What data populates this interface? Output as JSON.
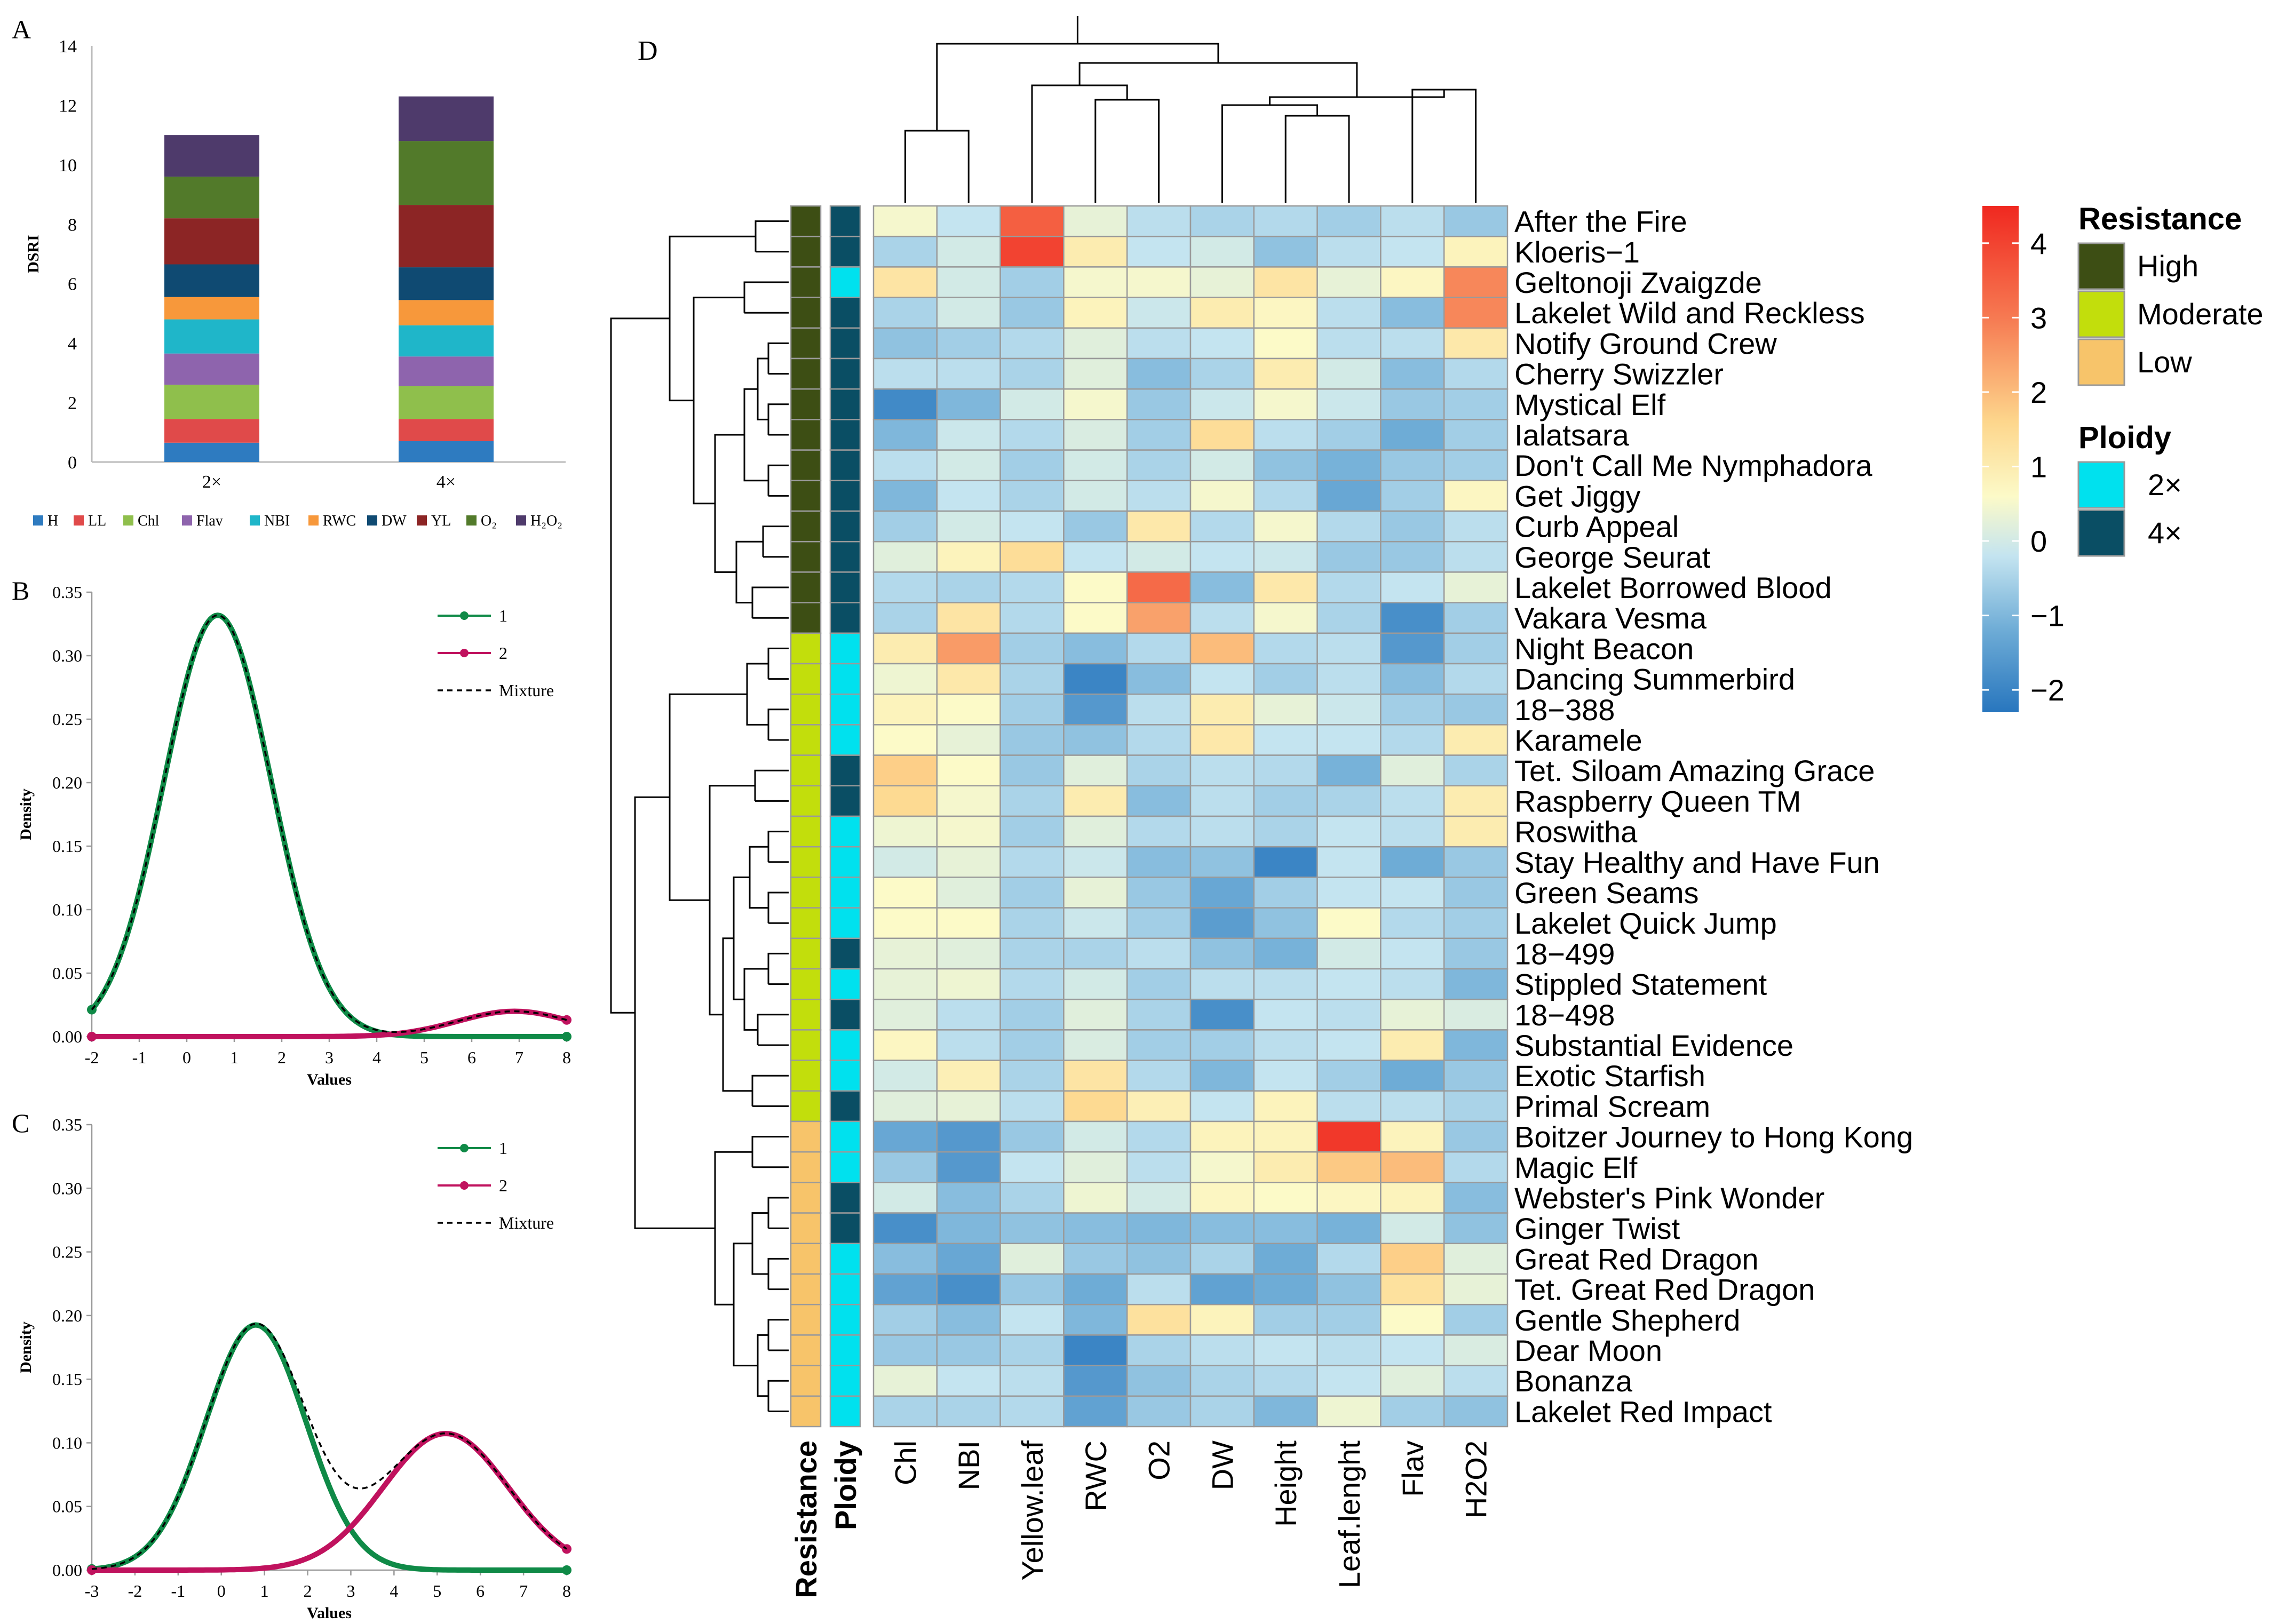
{
  "panels": {
    "A": "A",
    "B": "B",
    "C": "C",
    "D": "D"
  },
  "chart_data": [
    {
      "panel": "A",
      "type": "bar",
      "stacked": true,
      "ylabel": "DSRI",
      "ylim": [
        0,
        14
      ],
      "yticks": [
        0,
        2,
        4,
        6,
        8,
        10,
        12,
        14
      ],
      "categories": [
        "2×",
        "4×"
      ],
      "series": [
        {
          "name": "H",
          "color": "#2e7bc0",
          "values": [
            0.65,
            0.7
          ]
        },
        {
          "name": "LL",
          "color": "#e04a4a",
          "values": [
            0.8,
            0.75
          ]
        },
        {
          "name": "Chl",
          "color": "#8fbf4c",
          "values": [
            1.15,
            1.1
          ]
        },
        {
          "name": "Flav",
          "color": "#8e64ad",
          "values": [
            1.05,
            1.0
          ]
        },
        {
          "name": "NBI",
          "color": "#1fb6c9",
          "values": [
            1.15,
            1.05
          ]
        },
        {
          "name": "RWC",
          "color": "#f7983b",
          "values": [
            0.75,
            0.85
          ]
        },
        {
          "name": "DW",
          "color": "#0f4a72",
          "values": [
            1.1,
            1.1
          ]
        },
        {
          "name": "YL",
          "color": "#8c2525",
          "values": [
            1.55,
            2.1
          ]
        },
        {
          "name": "O₂",
          "color": "#527a2a",
          "values": [
            1.4,
            2.15
          ]
        },
        {
          "name": "H₂O₂",
          "color": "#4e3a6b",
          "values": [
            1.4,
            1.5
          ]
        }
      ]
    },
    {
      "panel": "B",
      "type": "line",
      "xlabel": "Values",
      "ylabel": "Density",
      "xlim": [
        -2,
        8
      ],
      "ylim": [
        0,
        0.35
      ],
      "xticks": [
        -2,
        -1,
        0,
        1,
        2,
        3,
        4,
        5,
        6,
        7,
        8
      ],
      "yticks": [
        "0.00",
        "0.05",
        "0.10",
        "0.15",
        "0.20",
        "0.25",
        "0.30",
        "0.35"
      ],
      "series": [
        {
          "name": "1",
          "color": "#0f8a47",
          "weight": 0.94,
          "mean": 0.65,
          "sd": 1.13
        },
        {
          "name": "2",
          "color": "#c0125e",
          "weight": 0.06,
          "mean": 6.9,
          "sd": 1.2
        },
        {
          "name": "Mixture",
          "color": "#000000",
          "dashed": true
        }
      ]
    },
    {
      "panel": "C",
      "type": "line",
      "xlabel": "Values",
      "ylabel": "Density",
      "xlim": [
        -3,
        8
      ],
      "ylim": [
        0,
        0.35
      ],
      "xticks": [
        -3,
        -2,
        -1,
        0,
        1,
        2,
        3,
        4,
        5,
        6,
        7,
        8
      ],
      "yticks": [
        "0.00",
        "0.05",
        "0.10",
        "0.15",
        "0.20",
        "0.25",
        "0.30",
        "0.35"
      ],
      "series": [
        {
          "name": "1",
          "color": "#0f8a47",
          "weight": 0.56,
          "mean": 0.8,
          "sd": 1.16
        },
        {
          "name": "2",
          "color": "#c0125e",
          "weight": 0.39,
          "mean": 5.2,
          "sd": 1.45
        },
        {
          "name": "Mixture",
          "color": "#000000",
          "dashed": true
        }
      ]
    },
    {
      "panel": "D",
      "type": "heatmap",
      "columns": [
        "Chl",
        "NBI",
        "Yellow.leaf",
        "RWC",
        "O2",
        "DW",
        "Height",
        "Leaf.lenght",
        "Flav",
        "H2O2"
      ],
      "rows": [
        "After the Fire",
        "Kloeris−1",
        "Geltonoji Zvaigzde",
        "Lakelet Wild and Reckless",
        "Notify Ground Crew",
        "Cherry Swizzler",
        "Mystical Elf",
        "Ialatsara",
        "Don't Call Me Nymphadora",
        "Get Jiggy",
        "Curb Appeal",
        "George Seurat",
        "Lakelet Borrowed Blood",
        "Vakara Vesma",
        "Night Beacon",
        "Dancing Summerbird",
        "18−388",
        "Karamele",
        "Tet. Siloam Amazing Grace",
        "Raspberry Queen TM",
        "Roswitha",
        "Stay Healthy and Have Fun",
        "Green Seams",
        "Lakelet Quick Jump",
        "18−499",
        "Stippled Statement",
        "18−498",
        "Substantial Evidence",
        "Exotic Starfish",
        "Primal Scream",
        "Boitzer Journey to Hong Kong",
        "Magic Elf",
        "Webster's Pink Wonder",
        "Ginger Twist",
        "Great Red Dragon",
        "Tet. Great Red Dragon",
        "Gentle Shepherd",
        "Dear Moon",
        "Bonanza",
        "Lakelet Red Impact"
      ],
      "resistance": [
        "High",
        "High",
        "High",
        "High",
        "High",
        "High",
        "High",
        "High",
        "High",
        "High",
        "High",
        "High",
        "High",
        "High",
        "Moderate",
        "Moderate",
        "Moderate",
        "Moderate",
        "Moderate",
        "Moderate",
        "Moderate",
        "Moderate",
        "Moderate",
        "Moderate",
        "Moderate",
        "Moderate",
        "Moderate",
        "Moderate",
        "Moderate",
        "Moderate",
        "Low",
        "Low",
        "Low",
        "Low",
        "Low",
        "Low",
        "Low",
        "Low",
        "Low",
        "Low"
      ],
      "ploidy": [
        "4×",
        "4×",
        "2×",
        "4×",
        "4×",
        "4×",
        "4×",
        "4×",
        "4×",
        "4×",
        "4×",
        "4×",
        "4×",
        "4×",
        "2×",
        "2×",
        "2×",
        "2×",
        "4×",
        "4×",
        "2×",
        "2×",
        "2×",
        "2×",
        "4×",
        "2×",
        "4×",
        "2×",
        "2×",
        "4×",
        "2×",
        "2×",
        "4×",
        "4×",
        "2×",
        "2×",
        "2×",
        "2×",
        "2×",
        "2×"
      ],
      "values": [
        [
          0.5,
          -0.2,
          3.5,
          0.3,
          -0.3,
          -0.5,
          -0.4,
          -0.6,
          -0.3,
          -0.7
        ],
        [
          -0.5,
          0.0,
          4.0,
          1.0,
          -0.2,
          0.0,
          -0.8,
          -0.3,
          -0.2,
          0.8
        ],
        [
          1.2,
          0.0,
          -0.6,
          0.5,
          0.5,
          0.3,
          1.2,
          0.3,
          0.7,
          2.8
        ],
        [
          -0.5,
          0.0,
          -0.7,
          0.8,
          -0.1,
          1.0,
          0.7,
          -0.3,
          -0.9,
          2.8
        ],
        [
          -0.8,
          -0.6,
          -0.4,
          0.2,
          -0.3,
          -0.2,
          0.6,
          -0.3,
          -0.3,
          1.1
        ],
        [
          -0.3,
          -0.3,
          -0.5,
          0.2,
          -0.9,
          -0.5,
          1.0,
          0.0,
          -0.9,
          -0.4
        ],
        [
          -1.9,
          -1.0,
          0.0,
          0.5,
          -0.7,
          -0.1,
          0.5,
          -0.1,
          -0.7,
          -0.6
        ],
        [
          -1.0,
          -0.1,
          -0.4,
          0.1,
          -0.6,
          1.4,
          -0.3,
          -0.6,
          -1.2,
          -0.6
        ],
        [
          -0.3,
          0.0,
          -0.6,
          0.0,
          -0.5,
          0.0,
          -0.8,
          -1.1,
          -0.7,
          -0.6
        ],
        [
          -1.0,
          -0.2,
          -0.5,
          0.0,
          -0.3,
          0.5,
          -0.4,
          -1.3,
          -0.6,
          0.7
        ],
        [
          -0.6,
          0.0,
          -0.2,
          -0.7,
          1.1,
          -0.4,
          0.5,
          -0.4,
          -0.7,
          -0.3
        ],
        [
          0.2,
          0.8,
          1.4,
          -0.2,
          0.0,
          -0.2,
          -0.1,
          -0.7,
          -0.7,
          -0.3
        ],
        [
          -0.4,
          -0.5,
          -0.4,
          0.6,
          3.3,
          -0.9,
          1.1,
          -0.4,
          -0.2,
          0.3
        ],
        [
          -0.5,
          1.2,
          -0.4,
          0.6,
          2.4,
          -0.3,
          0.5,
          -0.5,
          -1.8,
          -0.6
        ],
        [
          1.0,
          2.5,
          -0.6,
          -0.9,
          -0.4,
          2.0,
          -0.4,
          -0.3,
          -1.6,
          -0.6
        ],
        [
          0.4,
          1.1,
          -0.5,
          -2.0,
          -0.9,
          -0.2,
          -0.6,
          -0.3,
          -0.9,
          -0.4
        ],
        [
          0.8,
          0.6,
          -0.6,
          -1.6,
          -0.3,
          1.0,
          0.3,
          -0.1,
          -0.6,
          -0.7
        ],
        [
          0.6,
          0.3,
          -0.7,
          -0.8,
          -0.4,
          1.1,
          -0.2,
          -0.2,
          -0.4,
          1.0
        ],
        [
          1.7,
          0.6,
          -0.7,
          0.2,
          -0.5,
          -0.3,
          -0.4,
          -1.1,
          0.2,
          -0.5
        ],
        [
          1.5,
          0.5,
          -0.5,
          1.0,
          -0.9,
          -0.3,
          -0.6,
          -0.5,
          -0.3,
          1.0
        ],
        [
          0.4,
          0.5,
          -0.6,
          0.2,
          -0.4,
          -0.3,
          -0.5,
          -0.2,
          -0.3,
          1.0
        ],
        [
          0.0,
          0.3,
          -0.4,
          -0.1,
          -0.9,
          -0.8,
          -2.0,
          -0.2,
          -1.2,
          -0.7
        ],
        [
          0.6,
          0.2,
          -0.6,
          0.3,
          -0.7,
          -1.3,
          -0.6,
          -0.2,
          -0.2,
          -0.7
        ],
        [
          0.6,
          0.6,
          -0.5,
          -0.1,
          -0.6,
          -1.5,
          -0.8,
          0.6,
          -0.4,
          -0.6
        ],
        [
          0.3,
          0.2,
          -0.5,
          -0.5,
          -0.3,
          -0.8,
          -1.1,
          0.0,
          -0.2,
          -0.7
        ],
        [
          0.3,
          0.4,
          -0.4,
          0.0,
          -0.6,
          -0.3,
          -0.3,
          -0.2,
          -0.3,
          -1.0
        ],
        [
          0.2,
          -0.3,
          -0.6,
          0.2,
          -0.5,
          -1.8,
          -0.2,
          -0.3,
          0.3,
          0.1
        ],
        [
          0.7,
          -0.3,
          -0.6,
          0.1,
          -0.6,
          -0.6,
          -0.3,
          -0.2,
          1.0,
          -1.0
        ],
        [
          0.0,
          0.9,
          -0.5,
          1.2,
          -0.4,
          -1.0,
          -0.2,
          -0.6,
          -1.2,
          -0.7
        ],
        [
          0.2,
          0.3,
          -0.3,
          1.5,
          0.9,
          -0.2,
          0.8,
          -0.3,
          -0.3,
          -0.5
        ],
        [
          -1.3,
          -1.6,
          -0.7,
          0.0,
          -0.4,
          0.8,
          0.8,
          4.2,
          0.8,
          -0.7
        ],
        [
          -0.7,
          -1.6,
          -0.2,
          0.2,
          -0.3,
          0.5,
          1.0,
          1.8,
          2.0,
          -0.4
        ],
        [
          0.0,
          -0.9,
          -0.5,
          0.4,
          0.0,
          0.7,
          0.6,
          0.7,
          0.8,
          -0.9
        ],
        [
          -1.8,
          -1.0,
          -0.8,
          -0.9,
          -1.0,
          -0.9,
          -0.9,
          -1.1,
          0.0,
          -0.8
        ],
        [
          -0.9,
          -1.3,
          0.2,
          -0.7,
          -0.8,
          -0.5,
          -1.2,
          -0.4,
          1.7,
          0.2
        ],
        [
          -1.4,
          -1.8,
          -0.7,
          -1.2,
          -0.3,
          -1.4,
          -1.2,
          -0.8,
          1.3,
          0.3
        ],
        [
          -0.6,
          -0.9,
          -0.2,
          -1.0,
          1.3,
          0.8,
          -0.6,
          -0.6,
          0.6,
          -0.6
        ],
        [
          -0.7,
          -0.7,
          -0.5,
          -2.0,
          -0.5,
          -0.3,
          -0.2,
          -0.3,
          -0.2,
          0.1
        ],
        [
          0.3,
          -0.2,
          -0.3,
          -1.6,
          -0.8,
          -0.5,
          -0.4,
          -0.2,
          0.2,
          -0.3
        ],
        [
          -0.5,
          -0.5,
          -0.4,
          -1.4,
          -0.7,
          -0.5,
          -1.0,
          0.4,
          -0.6,
          -0.8
        ]
      ],
      "annotation_labels": [
        "Resistance",
        "Ploidy"
      ],
      "colorbar": {
        "min": -2.3,
        "max": 4.5,
        "ticks": [
          -2,
          -1,
          0,
          1,
          2,
          3,
          4
        ],
        "tick_labels": [
          "−2",
          "−1",
          "0",
          "1",
          "2",
          "3",
          "4"
        ]
      },
      "legend": {
        "resistance_title": "Resistance",
        "resistance_items": [
          {
            "label": "High",
            "color": "#3d4e14"
          },
          {
            "label": "Moderate",
            "color": "#c2de0c"
          },
          {
            "label": "Low",
            "color": "#f7c46a"
          }
        ],
        "ploidy_title": "Ploidy",
        "ploidy_items": [
          {
            "label": "2×",
            "color": "#00e1ee"
          },
          {
            "label": "4×",
            "color": "#0a4e64"
          }
        ]
      }
    }
  ]
}
